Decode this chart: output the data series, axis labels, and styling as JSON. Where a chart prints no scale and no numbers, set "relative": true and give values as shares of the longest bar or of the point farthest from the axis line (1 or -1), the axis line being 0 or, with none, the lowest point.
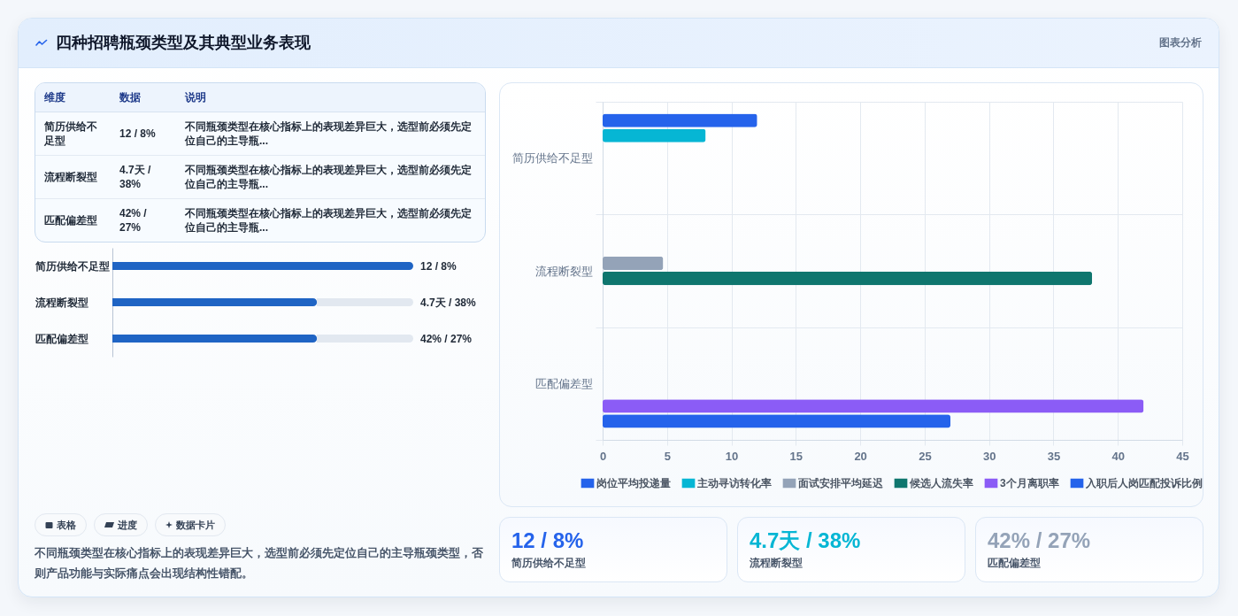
{
  "chart_data": [
    {
      "type": "other",
      "title": "四种招聘瓶颈类型及其典型业务表现",
      "annotations": [
        "图表分析"
      ]
    },
    {
      "type": "other",
      "annotations": [
        "维度",
        "数据",
        "说明",
        "简历供给不足型",
        "12 / 8%",
        "不同瓶颈类型在核心指标上的表现差异巨大，选型前必须先定位自己的主导瓶...",
        "流程断裂型",
        "4.7天 / 38%",
        "不同瓶颈类型在核心指标上的表现差异巨大，选型前必须先定位自己的主导瓶...",
        "匹配偏差型",
        "42% / 27%",
        "不同瓶颈类型在核心指标上的表现差异巨大，选型前必须先定位自己的主导瓶..."
      ]
    },
    {
      "type": "bar",
      "orientation": "horizontal",
      "relative": true,
      "categories": [
        "简历供给不足型",
        "流程断裂型",
        "匹配偏差型"
      ],
      "values": [
        1,
        0.68,
        0.68
      ],
      "annotations": [
        "12 / 8%",
        "4.7天 / 38%",
        "42% / 27%"
      ],
      "color": "#1f64c4"
    },
    {
      "type": "other",
      "annotations": [
        "表格",
        "进度",
        "数据卡片",
        "不同瓶颈类型在核心指标上的表现差异巨大，选型前必须先定位自己的主导瓶颈类型，否则产品功能与实际痛点会出现结构性错配。"
      ]
    },
    {
      "type": "bar",
      "orientation": "horizontal",
      "categories": [
        "简历供给不足型",
        "流程断裂型",
        "匹配偏差型"
      ],
      "series": [
        {
          "name": "岗位平均投递量",
          "color": "#2563eb",
          "values": [
            12,
            null,
            null
          ]
        },
        {
          "name": "主动寻访转化率",
          "color": "#06b6d4",
          "values": [
            8,
            null,
            null
          ]
        },
        {
          "name": "面试安排平均延迟",
          "color": "#94a3b8",
          "values": [
            null,
            4.7,
            null
          ]
        },
        {
          "name": "候选人流失率",
          "color": "#0f766e",
          "values": [
            null,
            38,
            null
          ]
        },
        {
          "name": "3个月离职率",
          "color": "#8b5cf6",
          "values": [
            null,
            null,
            42
          ]
        },
        {
          "name": "入职后人岗匹配投诉比例",
          "color": "#2563eb",
          "values": [
            null,
            null,
            27
          ]
        }
      ],
      "xlim": [
        0,
        45
      ],
      "xticks": [
        0,
        5,
        10,
        15,
        20,
        25,
        30,
        35,
        40,
        45
      ],
      "grid": true,
      "legend": "bottom"
    },
    {
      "type": "other",
      "annotations": [
        "12 / 8%",
        "简历供给不足型",
        "4.7天 / 38%",
        "流程断裂型",
        "42% / 27%",
        "匹配偏差型"
      ],
      "colors": [
        "#2563eb",
        "#06b6d4",
        "#94a3b8"
      ]
    }
  ]
}
